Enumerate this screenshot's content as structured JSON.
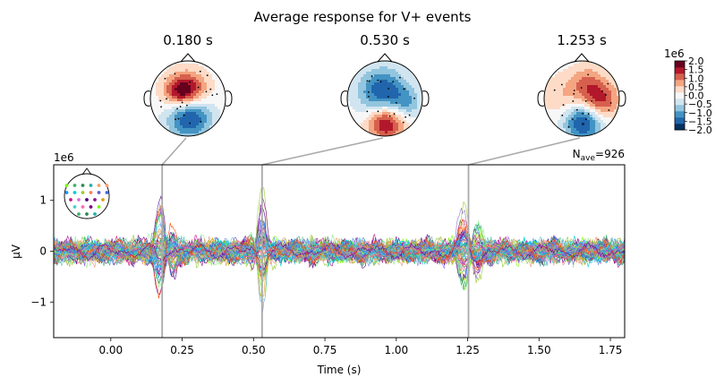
{
  "figure": {
    "title": "Average response for V+ events"
  },
  "chart_data": {
    "type": "line",
    "title": "Average response for V+ events",
    "xlabel": "Time (s)",
    "ylabel": "µV",
    "y_offset_label": "1e6",
    "xlim": [
      -0.2,
      1.8
    ],
    "ylim": [
      -1.7,
      1.7
    ],
    "x_ticks": [
      0.0,
      0.25,
      0.5,
      0.75,
      1.0,
      1.25,
      1.5,
      1.75
    ],
    "x_tick_labels": [
      "0.00",
      "0.25",
      "0.50",
      "0.75",
      "1.00",
      "1.25",
      "1.50",
      "1.75"
    ],
    "y_ticks": [
      1,
      0,
      -1
    ],
    "y_tick_labels": [
      "1",
      "0",
      "−1"
    ],
    "nave_label": "N",
    "nave_sub": "ave",
    "nave_value": "=926",
    "marker_times": [
      0.18,
      0.53,
      1.253
    ],
    "n_channels": 60,
    "grid": false,
    "series_colors": [
      "#8b1a8b",
      "#4b0082",
      "#c71585",
      "#da70d6",
      "#ff7f50",
      "#e9967a",
      "#ffa07a",
      "#f4a460",
      "#daa520",
      "#9acd32",
      "#7cfc00",
      "#3cb371",
      "#2e8b57",
      "#20b2aa",
      "#48d1cc",
      "#00ced1",
      "#1e90ff",
      "#4169e1",
      "#6495ed",
      "#9370db",
      "#ba55d3",
      "#ff69b4",
      "#f08080",
      "#bdb76b",
      "#90ee90",
      "#66cdaa",
      "#00bfff",
      "#6a5acd",
      "#800080",
      "#ff4500"
    ]
  },
  "topomaps": [
    {
      "title": "0.180 s",
      "time": 0.18
    },
    {
      "title": "0.530 s",
      "time": 0.53
    },
    {
      "title": "1.253 s",
      "time": 1.253
    }
  ],
  "colorbar": {
    "offset_label": "1e6",
    "ticks": [
      "2.0",
      "1.5",
      "1.0",
      "0.5",
      "0.0",
      "−0.5",
      "−1.0",
      "−1.5",
      "−2.0"
    ],
    "range": [
      -2.0,
      2.0
    ],
    "colors": [
      "#053061",
      "#2166ac",
      "#4393c3",
      "#92c5de",
      "#d1e5f0",
      "#f7f7f7",
      "#fddbc7",
      "#f4a582",
      "#d6604d",
      "#b2182b",
      "#67001f"
    ]
  }
}
